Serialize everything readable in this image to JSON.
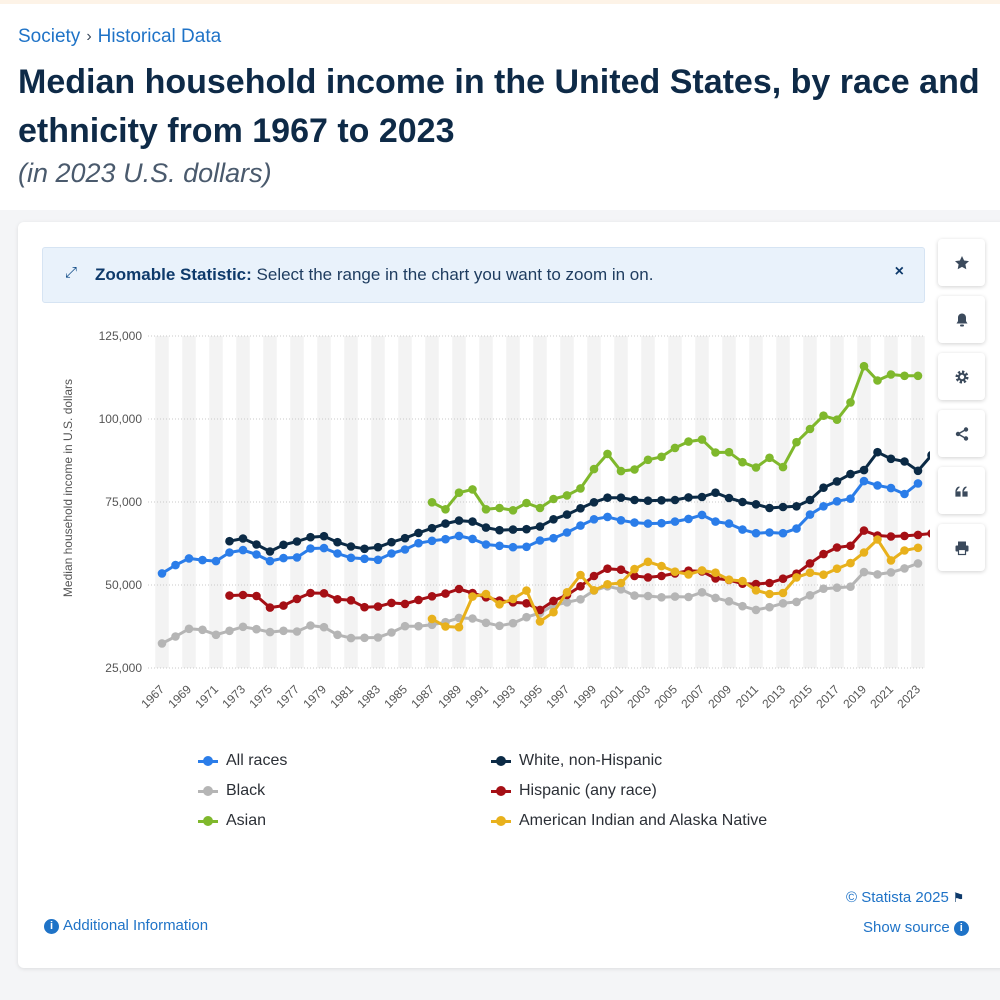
{
  "breadcrumb": {
    "parent": "Society",
    "separator": "›",
    "current": "Historical Data"
  },
  "page": {
    "title": "Median household income in the United States, by race and ethnicity from 1967 to 2023",
    "subtitle": "(in 2023 U.S. dollars)"
  },
  "banner": {
    "bold_label": "Zoomable Statistic:",
    "text": " Select the range in the chart you want to zoom in on.",
    "close": "×"
  },
  "toolbar": [
    "star-icon",
    "bell-icon",
    "gear-icon",
    "share-icon",
    "quote-icon",
    "print-icon"
  ],
  "footer": {
    "credit": "© Statista 2025",
    "show_source": "Show source",
    "additional_info": "Additional Information"
  },
  "colors": {
    "all_races": "#2b7de9",
    "white_non_hispanic": "#0b2a45",
    "black": "#b5b5b5",
    "hispanic": "#a50f15",
    "asian": "#7fb82c",
    "american_indian": "#e8b11c",
    "link": "#1f73c7"
  },
  "chart_data": {
    "type": "line",
    "title": "",
    "xlabel": "",
    "ylabel": "Median household income in U.S. dollars",
    "ylim": [
      25000,
      125000
    ],
    "yticks": [
      "125,000",
      "100,000",
      "75,000",
      "50,000",
      "25,000"
    ],
    "x_tick_labels": [
      "1967",
      "1969",
      "1971",
      "1973",
      "1975",
      "1977",
      "1979",
      "1981",
      "1983",
      "1985",
      "1987",
      "1989",
      "1991",
      "1993",
      "1995",
      "1997",
      "1999",
      "2001",
      "2003",
      "2005",
      "2007",
      "2009",
      "2011",
      "2013",
      "2015",
      "2017",
      "2019",
      "2021",
      "2023"
    ],
    "x_start": 1967,
    "x_end": 2023,
    "grid": true,
    "legend_placement": "bottom",
    "series": [
      {
        "name": "All races",
        "color": "#2b7de9",
        "start": 1967,
        "values": [
          53500,
          56000,
          58000,
          57500,
          57200,
          59800,
          60500,
          59200,
          57200,
          58100,
          58300,
          61000,
          61100,
          59500,
          58200,
          57900,
          57600,
          59500,
          60700,
          62600,
          63300,
          63800,
          64800,
          63900,
          62200,
          61800,
          61400,
          61500,
          63400,
          64100,
          65800,
          67900,
          69800,
          70500,
          69500,
          68800,
          68500,
          68600,
          69100,
          69900,
          71100,
          69100,
          68500,
          66700,
          65600,
          65800,
          65600,
          67000,
          71200,
          73700,
          75200,
          76000,
          81300,
          80000,
          79200,
          77400,
          80600
        ]
      },
      {
        "name": "White, non-Hispanic",
        "color": "#0b2a45",
        "start": 1972,
        "values": [
          63200,
          64000,
          62200,
          60100,
          62100,
          63100,
          64400,
          64700,
          62900,
          61600,
          60900,
          61400,
          62900,
          64100,
          65700,
          67100,
          68500,
          69400,
          69100,
          67300,
          66500,
          66700,
          66800,
          67600,
          69800,
          71200,
          73100,
          74900,
          76300,
          76300,
          75600,
          75400,
          75500,
          75600,
          76400,
          76500,
          77800,
          76200,
          75000,
          74300,
          73200,
          73500,
          73700,
          75600,
          79300,
          81200,
          83400,
          84600,
          90000,
          88000,
          87200,
          84400,
          89100
        ]
      },
      {
        "name": "Black",
        "color": "#b5b5b5",
        "start": 1967,
        "values": [
          32400,
          34500,
          36800,
          36500,
          35000,
          36200,
          37400,
          36700,
          35800,
          36200,
          36000,
          37800,
          37300,
          35000,
          34000,
          34100,
          34200,
          35700,
          37600,
          37600,
          38000,
          38800,
          40100,
          39900,
          38600,
          37700,
          38500,
          40300,
          41600,
          43800,
          44800,
          45700,
          48300,
          49600,
          48700,
          46800,
          46700,
          46300,
          46500,
          46400,
          47800,
          46100,
          45100,
          43600,
          42500,
          43300,
          44500,
          44900,
          46900,
          48900,
          49200,
          49500,
          53900,
          53200,
          53800,
          55000,
          56500
        ]
      },
      {
        "name": "Hispanic (any race)",
        "color": "#a50f15",
        "start": 1972,
        "values": [
          46800,
          47000,
          46700,
          43200,
          43800,
          45800,
          47600,
          47500,
          45700,
          45400,
          43300,
          43500,
          44600,
          44300,
          45500,
          46600,
          47400,
          48800,
          47600,
          46300,
          45300,
          44800,
          44500,
          42500,
          45200,
          47000,
          49600,
          52700,
          54900,
          54600,
          52700,
          52300,
          52700,
          53500,
          54300,
          54100,
          52000,
          51500,
          50400,
          50300,
          50600,
          51900,
          53400,
          56500,
          59300,
          61300,
          61800,
          66400,
          64900,
          64600,
          64800,
          65100,
          65500
        ]
      },
      {
        "name": "Asian",
        "color": "#7fb82c",
        "start": 1987,
        "values": [
          74900,
          72800,
          77800,
          78800,
          72800,
          73200,
          72500,
          74700,
          73200,
          75900,
          77000,
          79100,
          84900,
          89500,
          84300,
          84800,
          87700,
          88600,
          91300,
          93200,
          93800,
          89900,
          90000,
          87000,
          85400,
          88300,
          85500,
          93000,
          97000,
          101000,
          99800,
          105000,
          115900,
          111600,
          113400,
          113000,
          113000
        ]
      },
      {
        "name": "American Indian and Alaska Native",
        "color": "#e8b11c",
        "start": 1987,
        "values": [
          39800,
          37500,
          37300,
          46500,
          47300,
          44200,
          45800,
          48300,
          39000,
          41800,
          47800,
          53000,
          48400,
          50200,
          50600,
          54800,
          57000,
          55700,
          54000,
          53200,
          54400,
          53700,
          51600,
          51200,
          48400,
          47300,
          47600,
          52300,
          53700,
          53100,
          54900,
          56600,
          59800,
          63700,
          57400,
          60400,
          61200
        ]
      }
    ]
  }
}
